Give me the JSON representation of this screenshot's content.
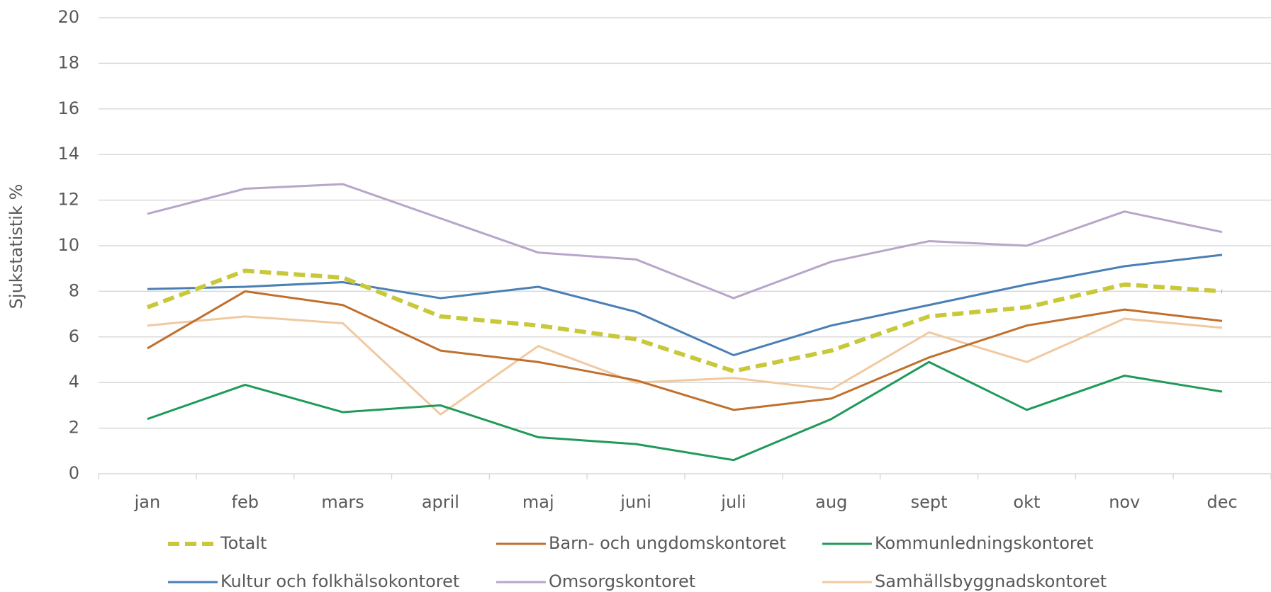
{
  "chart_data": {
    "type": "line",
    "ylabel": "Sjukstatistik %",
    "categories": [
      "jan",
      "feb",
      "mars",
      "april",
      "maj",
      "juni",
      "juli",
      "aug",
      "sept",
      "okt",
      "nov",
      "dec"
    ],
    "ylim": [
      0,
      20
    ],
    "yticks": [
      0,
      2,
      4,
      6,
      8,
      10,
      12,
      14,
      16,
      18,
      20
    ],
    "grid": true,
    "legend": "bottom",
    "series": [
      {
        "name": "Totalt",
        "color": "#c8c83a",
        "dashed": true,
        "values": [
          7.3,
          8.9,
          8.6,
          6.9,
          6.5,
          5.9,
          4.5,
          5.4,
          6.9,
          7.3,
          8.3,
          8.0
        ]
      },
      {
        "name": "Barn- och ungdomskontoret",
        "color": "#c0702c",
        "values": [
          5.5,
          8.0,
          7.4,
          5.4,
          4.9,
          4.1,
          2.8,
          3.3,
          5.1,
          6.5,
          7.2,
          6.7
        ]
      },
      {
        "name": "Kommunledningskontoret",
        "color": "#1f9a5a",
        "values": [
          2.4,
          3.9,
          2.7,
          3.0,
          1.6,
          1.3,
          0.6,
          2.4,
          4.9,
          2.8,
          4.3,
          3.6
        ]
      },
      {
        "name": "Kultur och folkhälsokontoret",
        "color": "#4a7fb5",
        "values": [
          8.1,
          8.2,
          8.4,
          7.7,
          8.2,
          7.1,
          5.2,
          6.5,
          7.4,
          8.3,
          9.1,
          9.6
        ]
      },
      {
        "name": "Omsorgskontoret",
        "color": "#b7a6c9",
        "values": [
          11.4,
          12.5,
          12.7,
          11.2,
          9.7,
          9.4,
          7.7,
          9.3,
          10.2,
          10.0,
          11.5,
          10.6
        ]
      },
      {
        "name": "Samhällsbyggnadskontoret",
        "color": "#f0c9a0",
        "values": [
          6.5,
          6.9,
          6.6,
          2.6,
          5.6,
          4.0,
          4.2,
          3.7,
          6.2,
          4.9,
          6.8,
          6.4
        ]
      }
    ]
  }
}
